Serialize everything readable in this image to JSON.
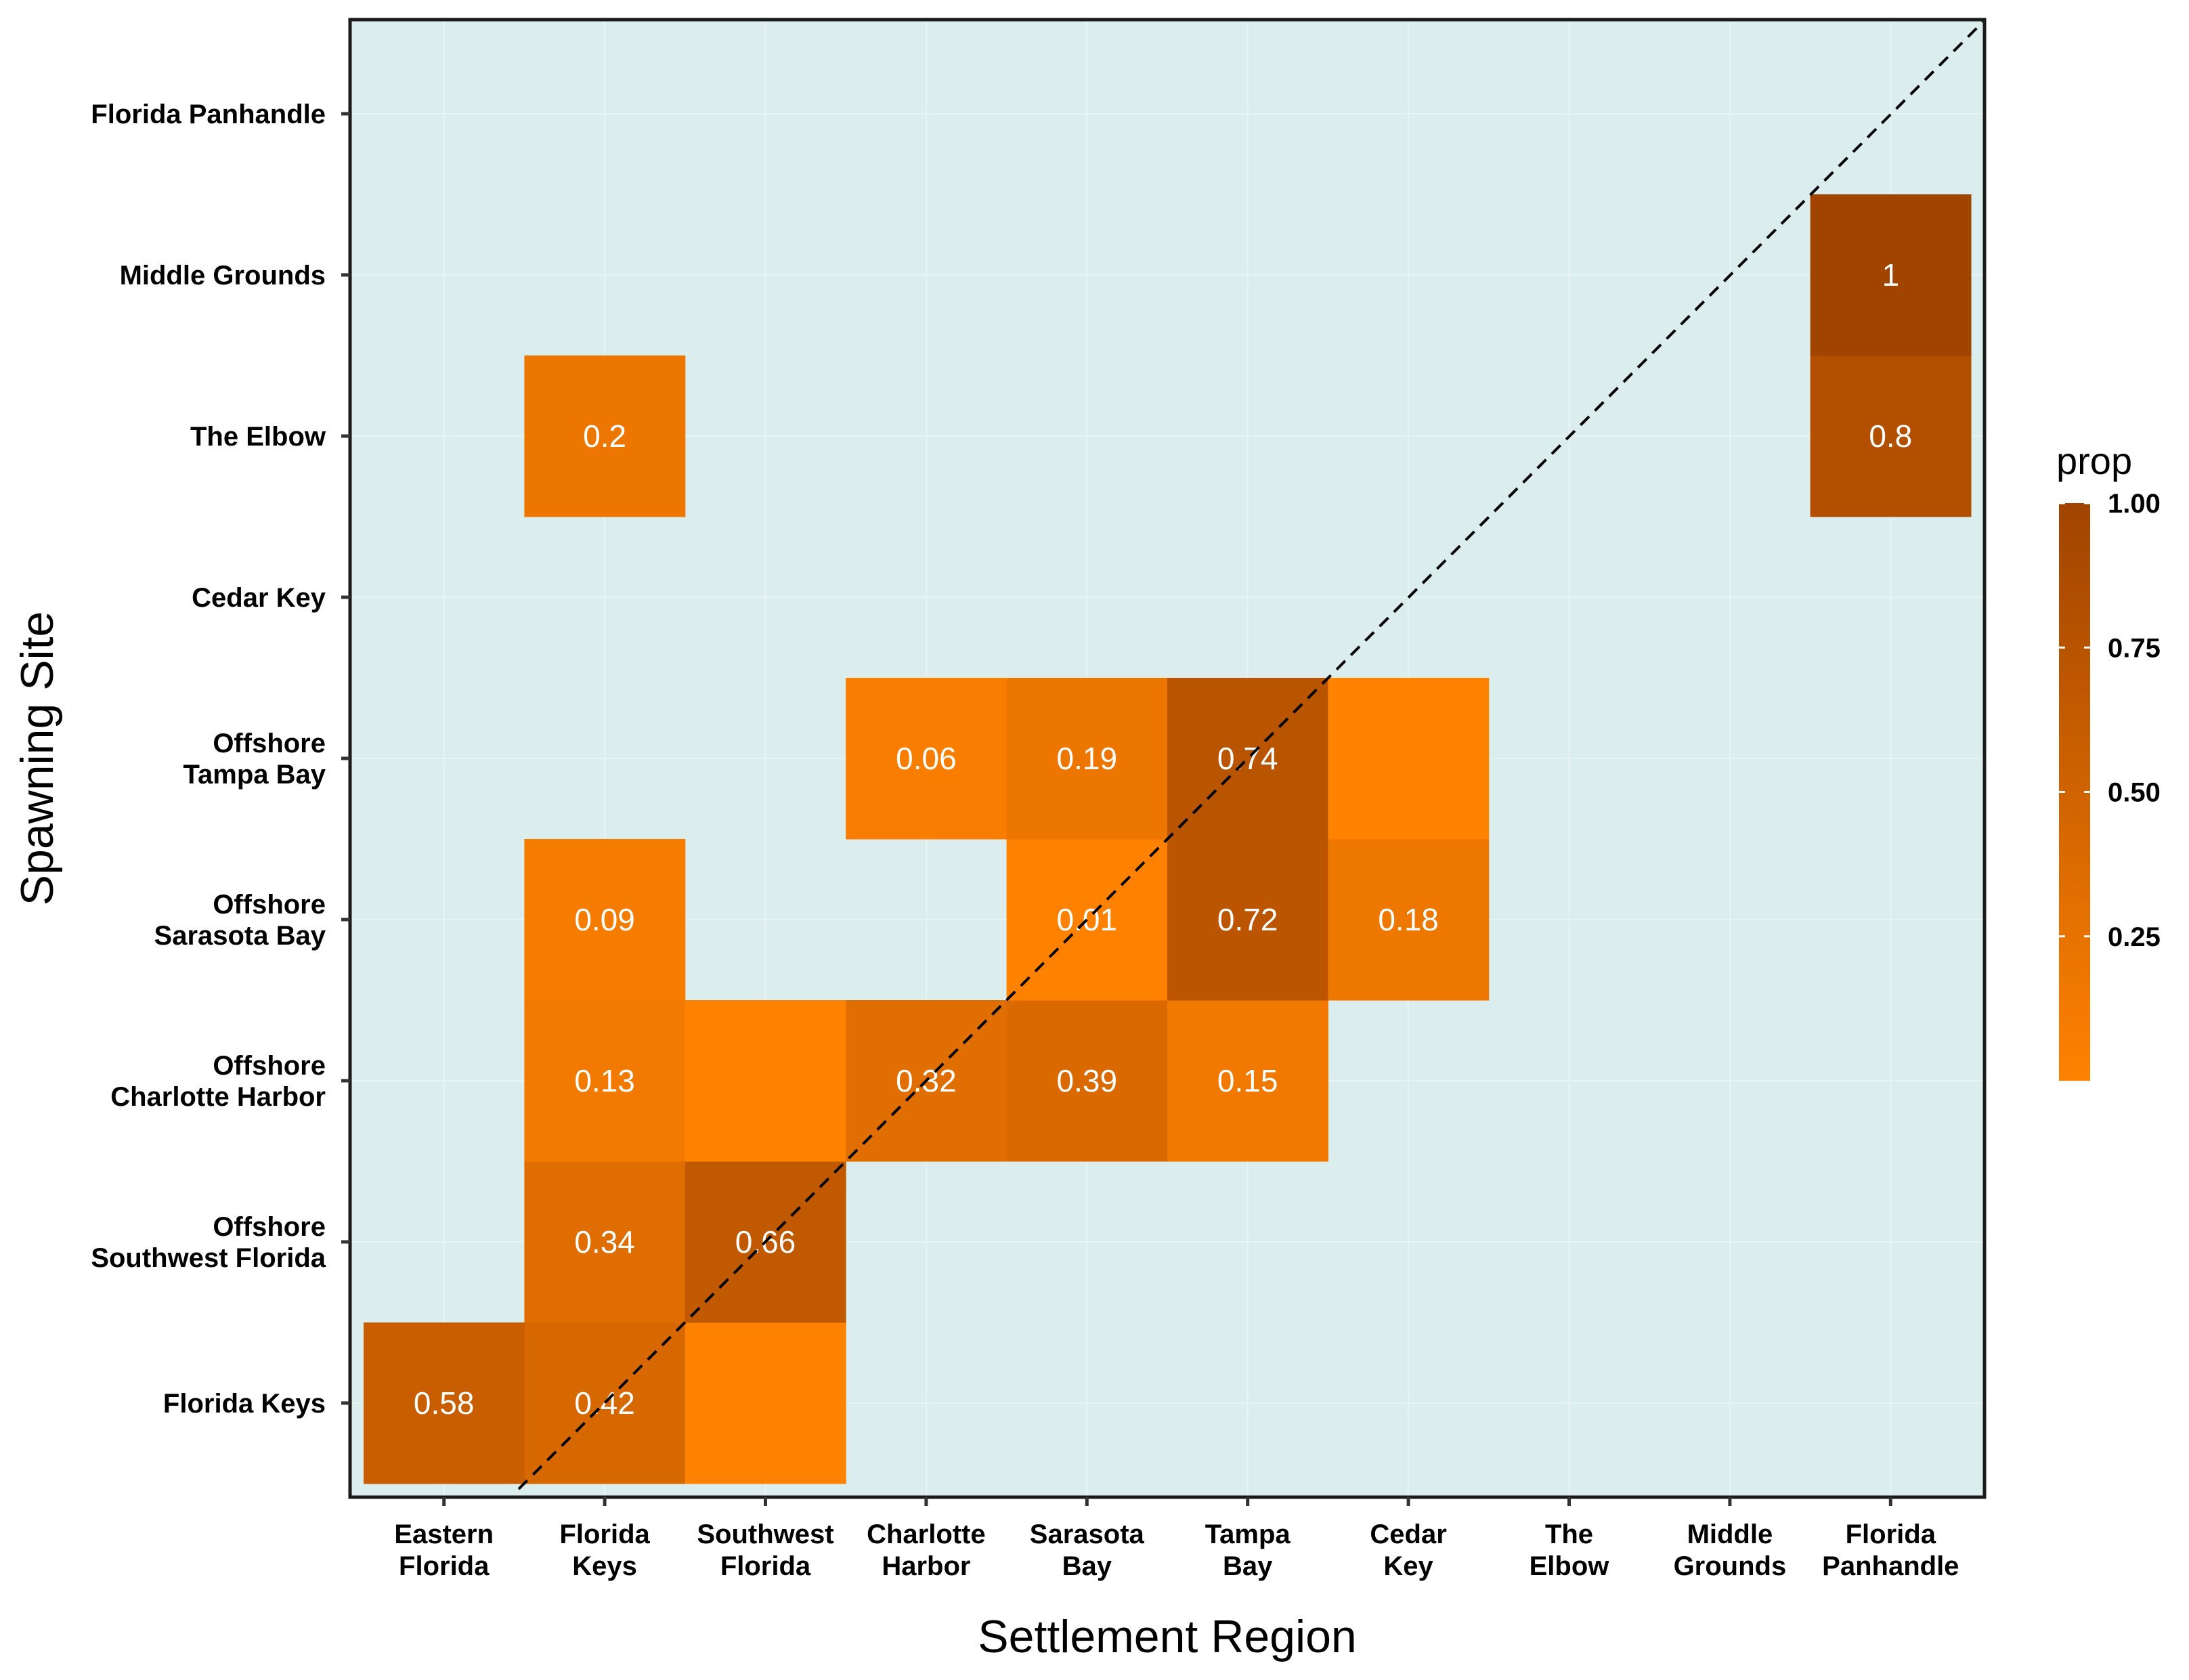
{
  "chart_data": {
    "type": "heatmap",
    "xlabel": "Settlement Region",
    "ylabel": "Spawning Site",
    "x_categories": [
      [
        "Eastern",
        "Florida"
      ],
      [
        "Florida",
        "Keys"
      ],
      [
        "Southwest",
        "Florida"
      ],
      [
        "Charlotte",
        "Harbor"
      ],
      [
        "Sarasota",
        "Bay"
      ],
      [
        "Tampa",
        "Bay"
      ],
      [
        "Cedar",
        "Key"
      ],
      [
        "The",
        "Elbow"
      ],
      [
        "Middle",
        "Grounds"
      ],
      [
        "Florida",
        "Panhandle"
      ]
    ],
    "y_categories": [
      [
        "Florida Keys"
      ],
      [
        "Offshore",
        "Southwest Florida"
      ],
      [
        "Offshore",
        "Charlotte Harbor"
      ],
      [
        "Offshore",
        "Sarasota Bay"
      ],
      [
        "Offshore",
        "Tampa Bay"
      ],
      [
        "Cedar Key"
      ],
      [
        "The Elbow"
      ],
      [
        "Middle Grounds"
      ],
      [
        "Florida Panhandle"
      ]
    ],
    "cells": [
      {
        "x": 0,
        "y": 0,
        "value": 0.58,
        "label": "0.58"
      },
      {
        "x": 1,
        "y": 0,
        "value": 0.42,
        "label": "0.42"
      },
      {
        "x": 2,
        "y": 0,
        "value": 0.0,
        "label": ""
      },
      {
        "x": 1,
        "y": 1,
        "value": 0.34,
        "label": "0.34"
      },
      {
        "x": 2,
        "y": 1,
        "value": 0.66,
        "label": "0.66"
      },
      {
        "x": 1,
        "y": 2,
        "value": 0.13,
        "label": "0.13"
      },
      {
        "x": 2,
        "y": 2,
        "value": 0.0,
        "label": ""
      },
      {
        "x": 3,
        "y": 2,
        "value": 0.32,
        "label": "0.32"
      },
      {
        "x": 4,
        "y": 2,
        "value": 0.39,
        "label": "0.39"
      },
      {
        "x": 5,
        "y": 2,
        "value": 0.15,
        "label": "0.15"
      },
      {
        "x": 1,
        "y": 3,
        "value": 0.09,
        "label": "0.09"
      },
      {
        "x": 4,
        "y": 3,
        "value": 0.01,
        "label": "0.01"
      },
      {
        "x": 5,
        "y": 3,
        "value": 0.72,
        "label": "0.72"
      },
      {
        "x": 6,
        "y": 3,
        "value": 0.18,
        "label": "0.18"
      },
      {
        "x": 3,
        "y": 4,
        "value": 0.06,
        "label": "0.06"
      },
      {
        "x": 4,
        "y": 4,
        "value": 0.19,
        "label": "0.19"
      },
      {
        "x": 5,
        "y": 4,
        "value": 0.74,
        "label": "0.74"
      },
      {
        "x": 6,
        "y": 4,
        "value": 0.0,
        "label": ""
      },
      {
        "x": 1,
        "y": 6,
        "value": 0.2,
        "label": "0.2"
      },
      {
        "x": 9,
        "y": 6,
        "value": 0.8,
        "label": "0.8"
      },
      {
        "x": 9,
        "y": 7,
        "value": 1.0,
        "label": "1"
      }
    ],
    "diagonal_reference_line": true,
    "legend": {
      "title": "prop",
      "position": "right",
      "ticks": [
        "1.00",
        "0.75",
        "0.50",
        "0.25"
      ],
      "tick_values": [
        1.0,
        0.75,
        0.5,
        0.25
      ],
      "range": [
        0,
        1
      ]
    },
    "colors": {
      "low": "#ff8200",
      "high": "#a04400",
      "panel_background": "#dbeeed",
      "gridline": "#e8f4f3"
    }
  }
}
